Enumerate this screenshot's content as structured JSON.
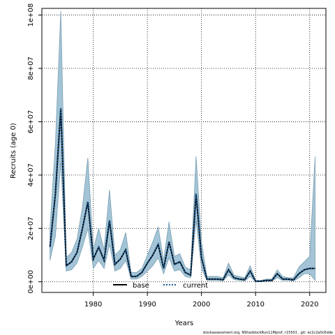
{
  "chart_data": {
    "type": "line",
    "title": "",
    "xlabel": "Years",
    "ylabel": "Recruits (age 0)",
    "xlim": [
      1970.5,
      2023
    ],
    "ylim": [
      -4000000,
      102500000
    ],
    "x_ticks": [
      1980,
      1990,
      2000,
      2010,
      2020
    ],
    "x_tick_labels": [
      "1980",
      "1990",
      "2000",
      "2010",
      "2020"
    ],
    "y_ticks": [
      0,
      20000000,
      40000000,
      60000000,
      80000000,
      100000000
    ],
    "y_tick_labels": [
      "0e+00",
      "2e+07",
      "4e+07",
      "6e+07",
      "8e+07",
      "1e+08"
    ],
    "grid": true,
    "legend_position": "bottom",
    "x": [
      1972,
      1973,
      1974,
      1975,
      1976,
      1977,
      1978,
      1979,
      1980,
      1981,
      1982,
      1983,
      1984,
      1985,
      1986,
      1987,
      1988,
      1989,
      1990,
      1991,
      1992,
      1993,
      1994,
      1995,
      1996,
      1997,
      1998,
      1999,
      2000,
      2001,
      2002,
      2003,
      2004,
      2005,
      2006,
      2007,
      2008,
      2009,
      2010,
      2011,
      2012,
      2013,
      2014,
      2015,
      2016,
      2017,
      2018,
      2019,
      2020,
      2021
    ],
    "band": {
      "color": "#a3c4d6",
      "upper": [
        20000000,
        52000000,
        101500000,
        9000000,
        11000000,
        16000000,
        28000000,
        46500000,
        12000000,
        20000000,
        12000000,
        34500000,
        10000000,
        12000000,
        18500000,
        3500000,
        3500000,
        5000000,
        10000000,
        15000000,
        20500000,
        8000000,
        22500000,
        9500000,
        10500000,
        5500000,
        4500000,
        47000000,
        15000000,
        2000000,
        2000000,
        2000000,
        1500000,
        7000000,
        2500000,
        2000000,
        1500000,
        6000000,
        500000,
        500000,
        1000000,
        1000000,
        4500000,
        2000000,
        1500000,
        1500000,
        5500000,
        7500000,
        9500000,
        47000000
      ],
      "lower": [
        8000000,
        17000000,
        45000000,
        4000000,
        4500000,
        7000000,
        13000000,
        20000000,
        5000000,
        8000000,
        5000000,
        14000000,
        4000000,
        5000000,
        8000000,
        1000000,
        1000000,
        2000000,
        4000000,
        6000000,
        9000000,
        3000000,
        9000000,
        4000000,
        4500000,
        2000000,
        1500000,
        23000000,
        5000000,
        500000,
        500000,
        500000,
        300000,
        2500000,
        800000,
        500000,
        300000,
        2000000,
        0,
        0,
        200000,
        200000,
        1500000,
        500000,
        500000,
        300000,
        1500000,
        3000000,
        3000000,
        500000
      ]
    },
    "series": [
      {
        "name": "base",
        "color": "#000000",
        "values": [
          13000000,
          33000000,
          65000000,
          6000000,
          7500000,
          11000000,
          20000000,
          30000000,
          8500000,
          13000000,
          8000000,
          23000000,
          6500000,
          8500000,
          12000000,
          2000000,
          2000000,
          3500000,
          7000000,
          10000000,
          14000000,
          5000000,
          15000000,
          6500000,
          7500000,
          3500000,
          2500000,
          33000000,
          9000000,
          1000000,
          1000000,
          1000000,
          800000,
          4500000,
          1500000,
          1000000,
          800000,
          4000000,
          200000,
          200000,
          500000,
          500000,
          3000000,
          1000000,
          1000000,
          700000,
          3000000,
          4500000,
          5000000,
          5000000
        ]
      },
      {
        "name": "current",
        "color": "#1a5a96",
        "values": [
          13000000,
          33000000,
          65000000,
          6000000,
          7500000,
          11000000,
          20000000,
          30000000,
          8500000,
          13000000,
          8000000,
          23000000,
          6500000,
          8500000,
          12000000,
          2000000,
          2000000,
          3500000,
          7000000,
          10000000,
          14000000,
          5000000,
          15000000,
          6500000,
          7500000,
          3500000,
          2500000,
          33000000,
          9000000,
          1000000,
          1000000,
          1000000,
          800000,
          4500000,
          1500000,
          1000000,
          800000,
          4000000,
          200000,
          200000,
          500000,
          500000,
          3000000,
          1000000,
          1000000,
          700000,
          3000000,
          4500000,
          5000000,
          5000000
        ]
      }
    ],
    "footer": "stockassessment.org, NShaddockRun11Mprof, r15501 , git: ec2c2a0c6dde"
  }
}
